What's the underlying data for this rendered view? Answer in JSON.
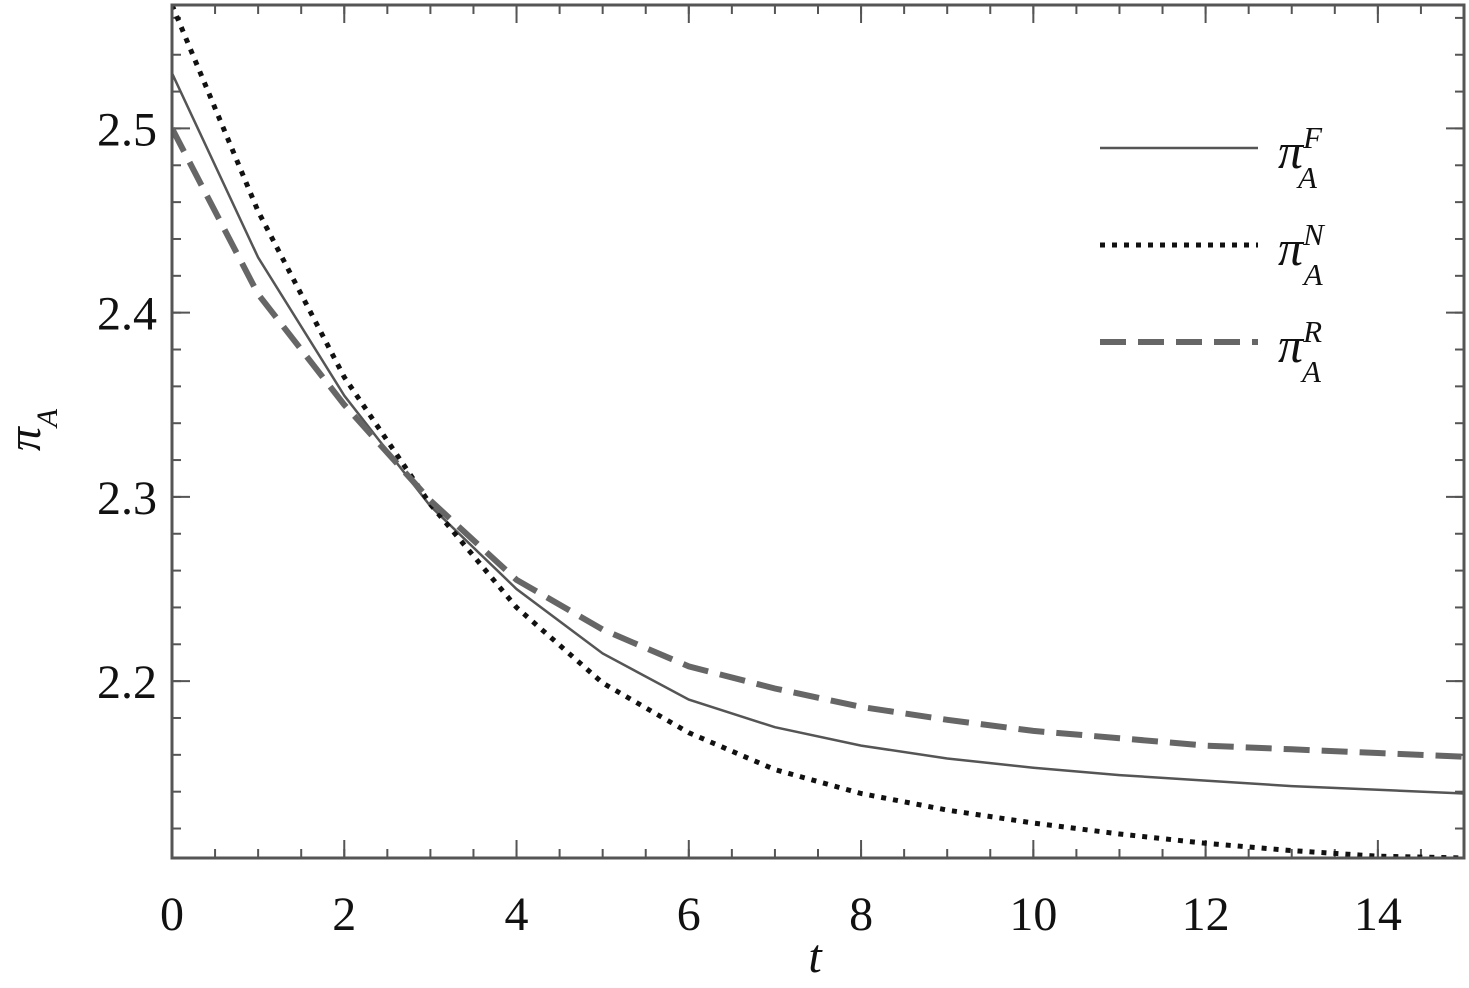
{
  "chart_data": {
    "type": "line",
    "x_label": "t",
    "y_label": "π_A",
    "x": [
      0,
      1,
      2,
      3,
      4,
      5,
      6,
      7,
      8,
      9,
      10,
      11,
      12,
      13,
      14,
      15
    ],
    "series": [
      {
        "name": "π_A^F",
        "color": "#555555",
        "style": "solid",
        "values": [
          2.53,
          2.43,
          2.355,
          2.295,
          2.25,
          2.215,
          2.19,
          2.175,
          2.165,
          2.158,
          2.153,
          2.149,
          2.146,
          2.143,
          2.141,
          2.139
        ]
      },
      {
        "name": "π_A^N",
        "color": "#111111",
        "style": "dotted",
        "values": [
          2.567,
          2.455,
          2.365,
          2.296,
          2.24,
          2.199,
          2.172,
          2.152,
          2.139,
          2.13,
          2.123,
          2.117,
          2.112,
          2.108,
          2.105,
          2.104
        ]
      },
      {
        "name": "π_A^R",
        "color": "#666666",
        "style": "dashed",
        "values": [
          2.5,
          2.41,
          2.35,
          2.298,
          2.255,
          2.228,
          2.208,
          2.196,
          2.186,
          2.179,
          2.173,
          2.169,
          2.165,
          2.163,
          2.161,
          2.159
        ]
      }
    ],
    "xlim": [
      0,
      15
    ],
    "xticks": [
      0,
      2,
      4,
      6,
      8,
      10,
      12,
      14
    ],
    "ylim": [
      2.104,
      2.567
    ],
    "yticks": [
      2.2,
      2.3,
      2.4,
      2.5
    ],
    "legend": "upper right",
    "grid": false
  }
}
